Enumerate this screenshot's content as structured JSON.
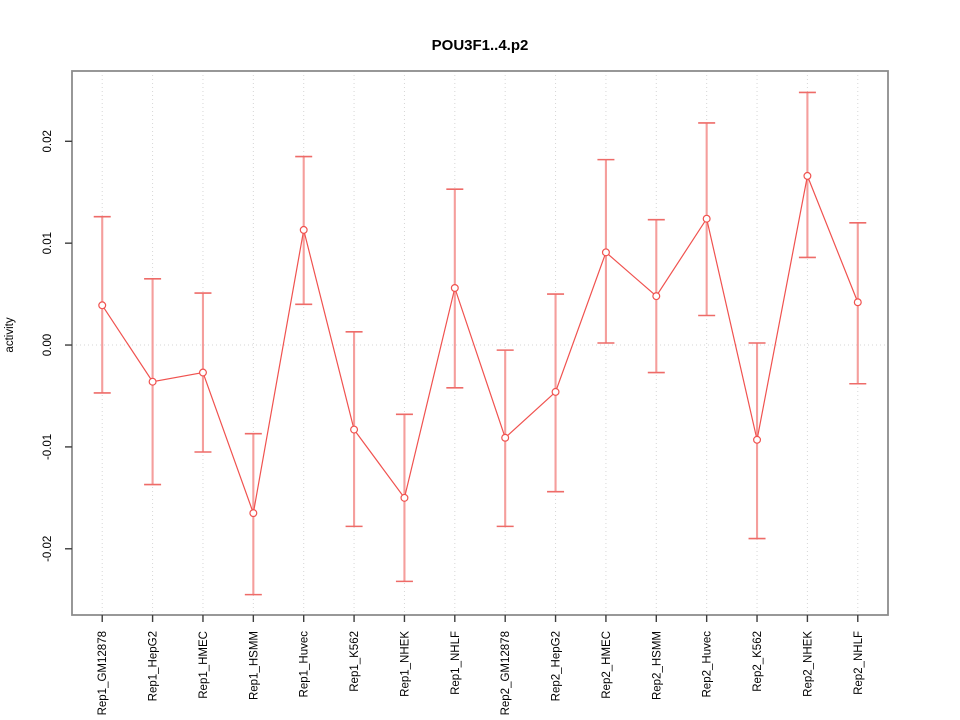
{
  "chart_data": {
    "type": "scatter",
    "title": "POU3F1..4.p2",
    "ylabel": "activity",
    "xlabel": "",
    "legend_position": "none",
    "grid": "vertical dotted per category, dotted horizontal zero line",
    "categories": [
      "Rep1_GM12878",
      "Rep1_HepG2",
      "Rep1_HMEC",
      "Rep1_HSMM",
      "Rep1_Huvec",
      "Rep1_K562",
      "Rep1_NHEK",
      "Rep1_NHLF",
      "Rep2_GM12878",
      "Rep2_HepG2",
      "Rep2_HMEC",
      "Rep2_HSMM",
      "Rep2_Huvec",
      "Rep2_K562",
      "Rep2_NHEK",
      "Rep2_NHLF"
    ],
    "series": [
      {
        "name": "activity",
        "values": [
          0.0039,
          -0.0036,
          -0.0027,
          -0.0165,
          0.0113,
          -0.0083,
          -0.015,
          0.0056,
          -0.0091,
          -0.0046,
          0.0091,
          0.0048,
          0.0124,
          -0.0093,
          0.0166,
          0.0042
        ],
        "lower": [
          -0.0047,
          -0.0137,
          -0.0105,
          -0.0245,
          0.004,
          -0.0178,
          -0.0232,
          -0.0042,
          -0.0178,
          -0.0144,
          0.0002,
          -0.0027,
          0.0029,
          -0.019,
          0.0086,
          -0.0038
        ],
        "upper": [
          0.0126,
          0.0065,
          0.0051,
          -0.0087,
          0.0185,
          0.0013,
          -0.0068,
          0.0153,
          -0.0005,
          0.005,
          0.0182,
          0.0123,
          0.0218,
          0.0002,
          0.0248,
          0.012
        ]
      }
    ],
    "yticks": [
      -0.02,
      -0.01,
      0.0,
      0.01,
      0.02
    ],
    "ytick_labels": [
      "-0.02",
      "-0.01",
      "0.00",
      "0.01",
      "0.02"
    ],
    "ylim": [
      -0.0265,
      0.0269
    ],
    "colors": {
      "series_line": "#f0524f",
      "point_stroke": "#f0524f",
      "point_fill": "#ffffff",
      "error_bar": "#f59e9c",
      "error_cap": "#ee6b68",
      "grid": "#d6d6d6",
      "box": "#8c8c8c",
      "tick": "#3d3d3d",
      "text": "#000000",
      "background": "#ffffff"
    }
  }
}
